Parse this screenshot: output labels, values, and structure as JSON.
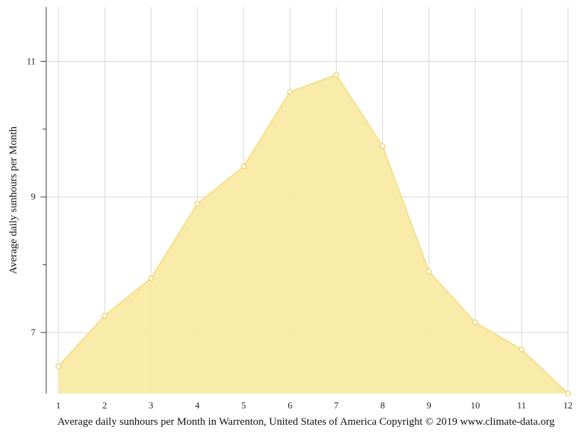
{
  "chart_data": {
    "type": "area",
    "title": "",
    "xlabel": "Average daily sunhours per Month in Warrenton, United States of America Copyright © 2019 www.climate-data.org",
    "ylabel": "Average daily sunhours per Month",
    "x": [
      1,
      2,
      3,
      4,
      5,
      6,
      7,
      8,
      9,
      10,
      11,
      12
    ],
    "x_tick_labels": [
      "1",
      "2",
      "3",
      "4",
      "5",
      "6",
      "7",
      "8",
      "9",
      "10",
      "11",
      "12"
    ],
    "y_tick_labels": [
      "7",
      "9",
      "11"
    ],
    "y_tick_values": [
      7,
      9,
      11
    ],
    "series": [
      {
        "values": [
          6.5,
          7.25,
          7.8,
          8.9,
          9.45,
          10.55,
          10.8,
          9.75,
          7.9,
          7.15,
          6.75,
          6.1
        ]
      }
    ],
    "xlim": [
      1,
      12
    ],
    "ylim": [
      6.1,
      11.8
    ],
    "grid": true,
    "legend": "none",
    "colors": {
      "fill": "#f9eaa5",
      "line": "#f6df8a",
      "marker_fill": "#ffffff",
      "marker_stroke": "#eed469",
      "grid": "#d6d6d6",
      "axis": "#333333"
    }
  }
}
